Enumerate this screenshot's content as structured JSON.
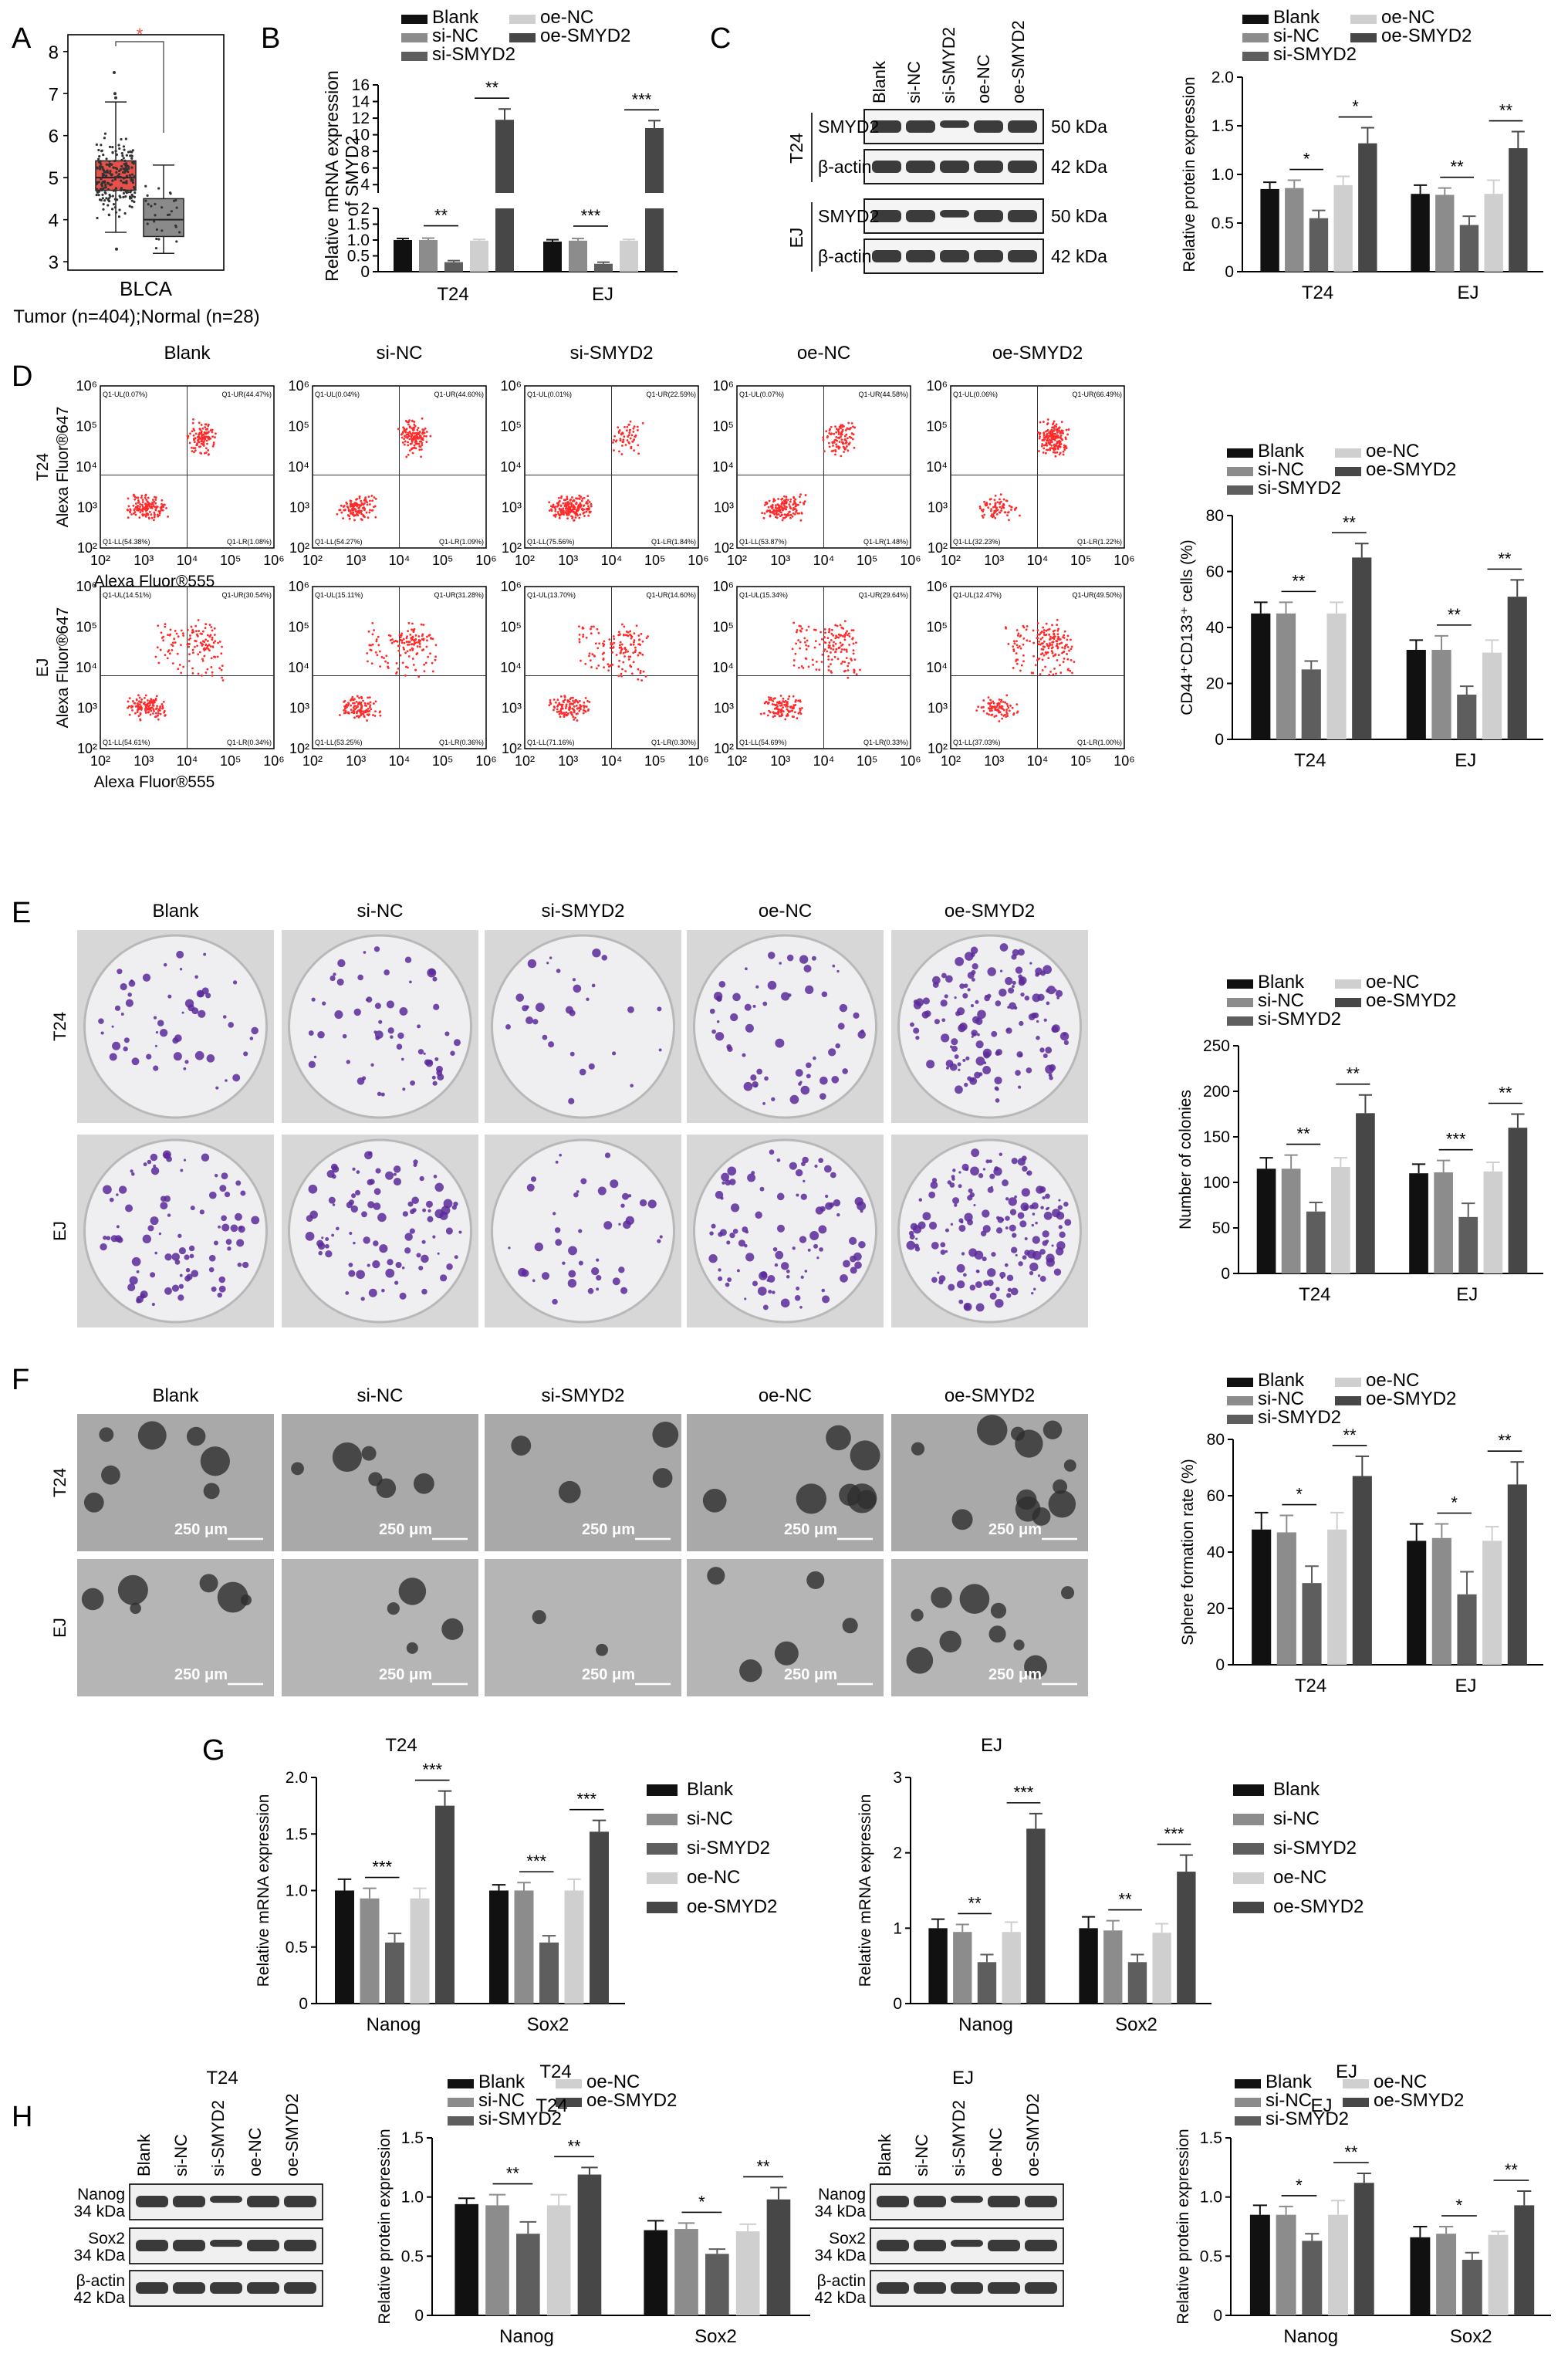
{
  "figure": {
    "panels": {
      "A": {
        "letter": "A",
        "cancer_label": "BLCA",
        "group_label": "Tumor (n=404);Normal (n=28)",
        "yticks": [
          "3",
          "4",
          "5",
          "6",
          "7",
          "8"
        ],
        "sig_marker": "*"
      },
      "B": {
        "letter": "B",
        "ylabel_line1": "Relative mRNA expression",
        "ylabel_line2": "of SMYD2",
        "low_ticks": [
          "0",
          "0.5",
          "1.0",
          "1.5",
          "2"
        ],
        "high_ticks": [
          "4",
          "6",
          "8",
          "10",
          "12",
          "14",
          "16"
        ],
        "groups": [
          "T24",
          "EJ"
        ]
      },
      "C": {
        "letter": "C",
        "lanes": [
          "Blank",
          "si-NC",
          "si-SMYD2",
          "oe-NC",
          "oe-SMYD2"
        ],
        "rows": [
          {
            "cell": "T24",
            "protein": "SMYD2",
            "size": "50 kDa"
          },
          {
            "cell": "T24",
            "protein": "β-actin",
            "size": "42 kDa"
          },
          {
            "cell": "EJ",
            "protein": "SMYD2",
            "size": "50 kDa"
          },
          {
            "cell": "EJ",
            "protein": "β-actin",
            "size": "42 kDa"
          }
        ],
        "cells": [
          "T24",
          "EJ"
        ]
      },
      "D": {
        "letter": "D",
        "conditions": [
          "Blank",
          "si-NC",
          "si-SMYD2",
          "oe-NC",
          "oe-SMYD2"
        ],
        "rows": [
          "T24",
          "EJ"
        ],
        "ylabel": "Alexa Fluor®647",
        "xlabel": "Alexa Fluor®555",
        "log_ticks": [
          "10²",
          "10³",
          "10⁴",
          "10⁵",
          "10⁶"
        ],
        "quadrants": {
          "T24": [
            [
              "Q1-UL(0.07%)",
              "Q1-UR(44.47%)",
              "Q1-LL(54.38%)",
              "Q1-LR(1.08%)"
            ],
            [
              "Q1-UL(0.04%)",
              "Q1-UR(44.60%)",
              "Q1-LL(54.27%)",
              "Q1-LR(1.09%)"
            ],
            [
              "Q1-UL(0.01%)",
              "Q1-UR(22.59%)",
              "Q1-LL(75.56%)",
              "Q1-LR(1.84%)"
            ],
            [
              "Q1-UL(0.07%)",
              "Q1-UR(44.58%)",
              "Q1-LL(53.87%)",
              "Q1-LR(1.48%)"
            ],
            [
              "Q1-UL(0.06%)",
              "Q1-UR(66.49%)",
              "Q1-LL(32.23%)",
              "Q1-LR(1.22%)"
            ]
          ],
          "EJ": [
            [
              "Q1-UL(14.51%)",
              "Q1-UR(30.54%)",
              "Q1-LL(54.61%)",
              "Q1-LR(0.34%)"
            ],
            [
              "Q1-UL(15.11%)",
              "Q1-UR(31.28%)",
              "Q1-LL(53.25%)",
              "Q1-LR(0.36%)"
            ],
            [
              "Q1-UL(13.70%)",
              "Q1-UR(14.60%)",
              "Q1-LL(71.16%)",
              "Q1-LR(0.30%)"
            ],
            [
              "Q1-UL(15.34%)",
              "Q1-UR(29.64%)",
              "Q1-LL(54.69%)",
              "Q1-LR(0.33%)"
            ],
            [
              "Q1-UL(12.47%)",
              "Q1-UR(49.50%)",
              "Q1-LL(37.03%)",
              "Q1-LR(1.00%)"
            ]
          ]
        }
      },
      "E": {
        "letter": "E",
        "conditions": [
          "Blank",
          "si-NC",
          "si-SMYD2",
          "oe-NC",
          "oe-SMYD2"
        ],
        "rows": [
          "T24",
          "EJ"
        ]
      },
      "F": {
        "letter": "F",
        "conditions": [
          "Blank",
          "si-NC",
          "si-SMYD2",
          "oe-NC",
          "oe-SMYD2"
        ],
        "rows": [
          "T24",
          "EJ"
        ],
        "scale": "250 μm"
      },
      "G": {
        "letter": "G"
      },
      "H": {
        "letter": "H",
        "blots": [
          {
            "title": "T24",
            "lanes": [
              "Blank",
              "si-NC",
              "si-SMYD2",
              "oe-NC",
              "oe-SMYD2"
            ],
            "rows": [
              [
                "Nanog",
                "34 kDa"
              ],
              [
                "Sox2",
                "34 kDa"
              ],
              [
                "β-actin",
                "42 kDa"
              ]
            ]
          },
          {
            "title": "EJ",
            "lanes": [
              "Blank",
              "si-NC",
              "si-SMYD2",
              "oe-NC",
              "oe-SMYD2"
            ],
            "rows": [
              [
                "Nanog",
                "34 kDa"
              ],
              [
                "Sox2",
                "34 kDa"
              ],
              [
                "β-actin",
                "42 kDa"
              ]
            ]
          }
        ]
      }
    },
    "colors": {
      "blank": "#111111",
      "si_nc": "#8c8c8c",
      "si_smyd2": "#5e5e5e",
      "oe_nc": "#cfcfcf",
      "oe_smyd2": "#474747",
      "tumor_box": "#e8514a",
      "normal_box": "#8a8a8a",
      "flow_dots": "#ff2a2a",
      "colony": "#5a2a9a"
    }
  },
  "chart_data": [
    {
      "id": "B",
      "type": "bar",
      "categories": [
        "T24",
        "EJ"
      ],
      "series": [
        {
          "name": "Blank",
          "values": [
            1.0,
            0.95
          ]
        },
        {
          "name": "si-NC",
          "values": [
            1.0,
            0.98
          ]
        },
        {
          "name": "si-SMYD2",
          "values": [
            0.3,
            0.25
          ]
        },
        {
          "name": "oe-NC",
          "values": [
            0.98,
            0.98
          ]
        },
        {
          "name": "oe-SMYD2",
          "values": [
            11.8,
            10.8
          ]
        }
      ],
      "errors": [
        [
          0.05,
          0.06
        ],
        [
          0.06,
          0.07
        ],
        [
          0.05,
          0.05
        ],
        [
          0.04,
          0.04
        ],
        [
          1.3,
          0.9
        ]
      ],
      "sig": [
        [
          "**",
          "***"
        ],
        [
          "**",
          "***"
        ]
      ],
      "legend": [
        "Blank",
        "si-NC",
        "si-SMYD2",
        "oe-NC",
        "oe-SMYD2"
      ],
      "ylabel": "Relative mRNA expression of SMYD2",
      "ylim_low": [
        0,
        2
      ],
      "ylim_high": [
        3,
        16
      ]
    },
    {
      "id": "C",
      "type": "bar",
      "categories": [
        "T24",
        "EJ"
      ],
      "series": [
        {
          "name": "Blank",
          "values": [
            0.85,
            0.8
          ]
        },
        {
          "name": "si-NC",
          "values": [
            0.86,
            0.79
          ]
        },
        {
          "name": "si-SMYD2",
          "values": [
            0.55,
            0.48
          ]
        },
        {
          "name": "oe-NC",
          "values": [
            0.89,
            0.8
          ]
        },
        {
          "name": "oe-SMYD2",
          "values": [
            1.32,
            1.27
          ]
        }
      ],
      "errors": [
        [
          0.07,
          0.09
        ],
        [
          0.08,
          0.07
        ],
        [
          0.08,
          0.09
        ],
        [
          0.09,
          0.14
        ],
        [
          0.16,
          0.17
        ]
      ],
      "sig": [
        [
          "*",
          "**"
        ],
        [
          "*",
          "**"
        ]
      ],
      "yticks": [
        "0",
        "0.5",
        "1.0",
        "1.5",
        "2.0"
      ],
      "ylim": [
        0,
        2
      ],
      "ylabel": "Relative protein expression",
      "legend": [
        "Blank",
        "si-NC",
        "si-SMYD2",
        "oe-NC",
        "oe-SMYD2"
      ]
    },
    {
      "id": "D",
      "type": "bar",
      "categories": [
        "T24",
        "EJ"
      ],
      "series": [
        {
          "name": "Blank",
          "values": [
            45,
            32
          ]
        },
        {
          "name": "si-NC",
          "values": [
            45,
            32
          ]
        },
        {
          "name": "si-SMYD2",
          "values": [
            25,
            16
          ]
        },
        {
          "name": "oe-NC",
          "values": [
            45,
            31
          ]
        },
        {
          "name": "oe-SMYD2",
          "values": [
            65,
            51
          ]
        }
      ],
      "errors": [
        [
          4,
          3.5
        ],
        [
          4,
          5
        ],
        [
          3,
          3
        ],
        [
          4,
          4.5
        ],
        [
          5,
          6
        ]
      ],
      "sig": [
        [
          "**",
          "**"
        ],
        [
          "**",
          "**"
        ]
      ],
      "yticks": [
        "0",
        "20",
        "40",
        "60",
        "80"
      ],
      "ylim": [
        0,
        80
      ],
      "ylabel": "CD44⁺CD133⁺ cells (%)",
      "legend": [
        "Blank",
        "si-NC",
        "si-SMYD2",
        "oe-NC",
        "oe-SMYD2"
      ]
    },
    {
      "id": "E",
      "type": "bar",
      "categories": [
        "T24",
        "EJ"
      ],
      "series": [
        {
          "name": "Blank",
          "values": [
            115,
            110
          ]
        },
        {
          "name": "si-NC",
          "values": [
            115,
            111
          ]
        },
        {
          "name": "si-SMYD2",
          "values": [
            68,
            62
          ]
        },
        {
          "name": "oe-NC",
          "values": [
            117,
            112
          ]
        },
        {
          "name": "oe-SMYD2",
          "values": [
            176,
            160
          ]
        }
      ],
      "errors": [
        [
          12,
          10
        ],
        [
          15,
          13
        ],
        [
          10,
          15
        ],
        [
          10,
          10
        ],
        [
          20,
          15
        ]
      ],
      "sig": [
        [
          "**",
          "***"
        ],
        [
          "**",
          "**"
        ]
      ],
      "yticks": [
        "0",
        "50",
        "100",
        "150",
        "200",
        "250"
      ],
      "ylim": [
        0,
        250
      ],
      "ylabel": "Number of colonies",
      "legend": [
        "Blank",
        "si-NC",
        "si-SMYD2",
        "oe-NC",
        "oe-SMYD2"
      ]
    },
    {
      "id": "F",
      "type": "bar",
      "categories": [
        "T24",
        "EJ"
      ],
      "series": [
        {
          "name": "Blank",
          "values": [
            48,
            44
          ]
        },
        {
          "name": "si-NC",
          "values": [
            47,
            45
          ]
        },
        {
          "name": "si-SMYD2",
          "values": [
            29,
            25
          ]
        },
        {
          "name": "oe-NC",
          "values": [
            48,
            44
          ]
        },
        {
          "name": "oe-SMYD2",
          "values": [
            67,
            64
          ]
        }
      ],
      "errors": [
        [
          6,
          6
        ],
        [
          6,
          5
        ],
        [
          6,
          8
        ],
        [
          6,
          5
        ],
        [
          7,
          8
        ]
      ],
      "sig": [
        [
          "*",
          "*"
        ],
        [
          "**",
          "**"
        ]
      ],
      "yticks": [
        "0",
        "20",
        "40",
        "60",
        "80"
      ],
      "ylim": [
        0,
        80
      ],
      "ylabel": "Sphere formation rate (%)",
      "legend": [
        "Blank",
        "si-NC",
        "si-SMYD2",
        "oe-NC",
        "oe-SMYD2"
      ]
    },
    {
      "id": "G1",
      "type": "bar",
      "title": "T24",
      "categories": [
        "Nanog",
        "Sox2"
      ],
      "series": [
        {
          "name": "Blank",
          "values": [
            1.0,
            1.0
          ]
        },
        {
          "name": "si-NC",
          "values": [
            0.93,
            1.0
          ]
        },
        {
          "name": "si-SMYD2",
          "values": [
            0.54,
            0.54
          ]
        },
        {
          "name": "oe-NC",
          "values": [
            0.93,
            1.0
          ]
        },
        {
          "name": "oe-SMYD2",
          "values": [
            1.75,
            1.52
          ]
        }
      ],
      "errors": [
        [
          0.1,
          0.05
        ],
        [
          0.09,
          0.07
        ],
        [
          0.08,
          0.06
        ],
        [
          0.09,
          0.1
        ],
        [
          0.13,
          0.1
        ]
      ],
      "sig": [
        [
          "***",
          "***"
        ],
        [
          "***",
          "***"
        ]
      ],
      "yticks": [
        "0",
        "0.5",
        "1.0",
        "1.5",
        "2.0"
      ],
      "ylim": [
        0,
        2
      ],
      "ylabel": "Relative mRNA expression",
      "legend": [
        "Blank",
        "si-NC",
        "si-SMYD2",
        "oe-NC",
        "oe-SMYD2"
      ]
    },
    {
      "id": "G2",
      "type": "bar",
      "title": "EJ",
      "categories": [
        "Nanog",
        "Sox2"
      ],
      "series": [
        {
          "name": "Blank",
          "values": [
            1.0,
            1.0
          ]
        },
        {
          "name": "si-NC",
          "values": [
            0.95,
            0.97
          ]
        },
        {
          "name": "si-SMYD2",
          "values": [
            0.55,
            0.55
          ]
        },
        {
          "name": "oe-NC",
          "values": [
            0.95,
            0.94
          ]
        },
        {
          "name": "oe-SMYD2",
          "values": [
            2.32,
            1.75
          ]
        }
      ],
      "errors": [
        [
          0.12,
          0.15
        ],
        [
          0.1,
          0.13
        ],
        [
          0.1,
          0.1
        ],
        [
          0.13,
          0.12
        ],
        [
          0.2,
          0.22
        ]
      ],
      "sig": [
        [
          "**",
          "**"
        ],
        [
          "***",
          "***"
        ]
      ],
      "yticks": [
        "0",
        "1",
        "2",
        "3"
      ],
      "ylim": [
        0,
        3
      ],
      "ylabel": "Relative mRNA expression",
      "legend": [
        "Blank",
        "si-NC",
        "si-SMYD2",
        "oe-NC",
        "oe-SMYD2"
      ]
    },
    {
      "id": "H1",
      "type": "bar",
      "title": "T24",
      "categories": [
        "Nanog",
        "Sox2"
      ],
      "series": [
        {
          "name": "Blank",
          "values": [
            0.94,
            0.72
          ]
        },
        {
          "name": "si-NC",
          "values": [
            0.93,
            0.73
          ]
        },
        {
          "name": "si-SMYD2",
          "values": [
            0.69,
            0.52
          ]
        },
        {
          "name": "oe-NC",
          "values": [
            0.93,
            0.71
          ]
        },
        {
          "name": "oe-SMYD2",
          "values": [
            1.19,
            0.98
          ]
        }
      ],
      "errors": [
        [
          0.05,
          0.08
        ],
        [
          0.09,
          0.05
        ],
        [
          0.1,
          0.04
        ],
        [
          0.09,
          0.06
        ],
        [
          0.06,
          0.1
        ]
      ],
      "sig": [
        [
          "**",
          "*"
        ],
        [
          "**",
          "**"
        ]
      ],
      "yticks": [
        "0",
        "0.5",
        "1.0",
        "1.5"
      ],
      "ylim": [
        0,
        1.5
      ],
      "ylabel": "Relative protein expression",
      "legend": [
        "Blank",
        "si-NC",
        "si-SMYD2",
        "oe-NC",
        "oe-SMYD2"
      ]
    },
    {
      "id": "H2",
      "type": "bar",
      "title": "EJ",
      "categories": [
        "Nanog",
        "Sox2"
      ],
      "series": [
        {
          "name": "Blank",
          "values": [
            0.85,
            0.66
          ]
        },
        {
          "name": "si-NC",
          "values": [
            0.85,
            0.69
          ]
        },
        {
          "name": "si-SMYD2",
          "values": [
            0.63,
            0.47
          ]
        },
        {
          "name": "oe-NC",
          "values": [
            0.85,
            0.68
          ]
        },
        {
          "name": "oe-SMYD2",
          "values": [
            1.12,
            0.93
          ]
        }
      ],
      "errors": [
        [
          0.08,
          0.09
        ],
        [
          0.07,
          0.06
        ],
        [
          0.06,
          0.06
        ],
        [
          0.12,
          0.03
        ],
        [
          0.08,
          0.12
        ]
      ],
      "sig": [
        [
          "*",
          "*"
        ],
        [
          "**",
          "**"
        ]
      ],
      "yticks": [
        "0",
        "0.5",
        "1.0",
        "1.5"
      ],
      "ylim": [
        0,
        1.5
      ],
      "ylabel": "Relative protein expression",
      "legend": [
        "Blank",
        "si-NC",
        "si-SMYD2",
        "oe-NC",
        "oe-SMYD2"
      ]
    },
    {
      "id": "A",
      "type": "box",
      "categories": [
        "Tumor",
        "Normal"
      ],
      "series": [
        {
          "name": "Tumor",
          "median": 5.0,
          "q1": 4.7,
          "q3": 5.4,
          "whisker_low": 3.7,
          "whisker_high": 6.8
        },
        {
          "name": "Normal",
          "median": 4.0,
          "q1": 3.6,
          "q3": 4.5,
          "whisker_low": 3.2,
          "whisker_high": 5.3
        }
      ],
      "yticks": [
        "3",
        "4",
        "5",
        "6",
        "7",
        "8"
      ],
      "ylim": [
        2.8,
        8.4
      ]
    }
  ]
}
